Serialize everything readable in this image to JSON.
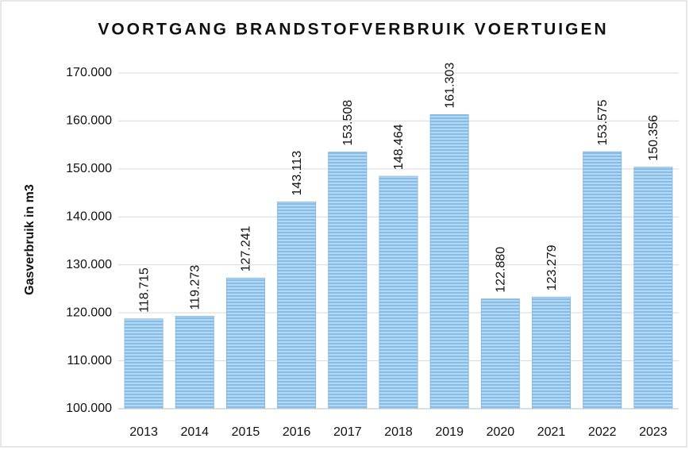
{
  "chart_data": {
    "type": "bar",
    "title": "VOORTGANG BRANDSTOFVERBRUIK VOERTUIGEN",
    "y_label": "Gasverbruik in m3",
    "categories": [
      "2013",
      "2014",
      "2015",
      "2016",
      "2017",
      "2018",
      "2019",
      "2020",
      "2021",
      "2022",
      "2023"
    ],
    "values": [
      118715,
      119273,
      127241,
      143113,
      153508,
      148464,
      161303,
      122880,
      123279,
      153575,
      150356
    ],
    "value_labels": [
      "118.715",
      "119.273",
      "127.241",
      "143.113",
      "153.508",
      "148.464",
      "161.303",
      "122.880",
      "123.279",
      "153.575",
      "150.356"
    ],
    "color": "#9ccbee",
    "ylim": [
      100000,
      170000
    ],
    "yticks": [
      {
        "value": 100000,
        "label": "100.000"
      },
      {
        "value": 110000,
        "label": "110.000"
      },
      {
        "value": 120000,
        "label": "120.000"
      },
      {
        "value": 130000,
        "label": "130.000"
      },
      {
        "value": 140000,
        "label": "140.000"
      },
      {
        "value": 150000,
        "label": "150.000"
      },
      {
        "value": 160000,
        "label": "160.000"
      },
      {
        "value": 170000,
        "label": "170.000"
      }
    ],
    "grid": true
  }
}
